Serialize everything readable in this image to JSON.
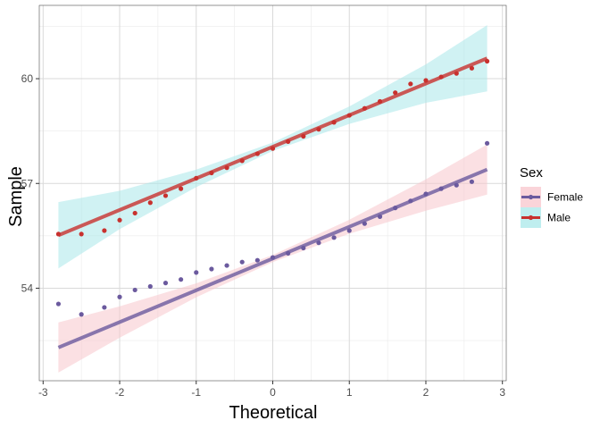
{
  "chart_data": {
    "type": "scatter",
    "subtype": "qq-plot",
    "title": "",
    "xlabel": "Theoretical",
    "ylabel": "Sample",
    "xlim": [
      -3.05,
      3.05
    ],
    "ylim": [
      51.35,
      62.1
    ],
    "x_ticks": [
      -3,
      -2,
      -1,
      0,
      1,
      2,
      3
    ],
    "x_tick_labels": [
      "-3",
      "-2",
      "-1",
      "0",
      "1",
      "2",
      "3"
    ],
    "y_ticks": [
      54,
      57,
      60
    ],
    "y_tick_labels": [
      "54",
      "57",
      "60"
    ],
    "grid": true,
    "legend": {
      "title": "Sex",
      "position": "right"
    },
    "series": [
      {
        "name": "Female",
        "color": "#6b5a9e",
        "band_color": "#f8c6cc",
        "line": {
          "intercept": 54.85,
          "slope": 0.91
        },
        "band_half_width": [
          [
            -2.8,
            0.72
          ],
          [
            -2.0,
            0.45
          ],
          [
            -1.0,
            0.2
          ],
          [
            0.0,
            0.1
          ],
          [
            1.0,
            0.2
          ],
          [
            2.0,
            0.45
          ],
          [
            2.8,
            0.72
          ]
        ],
        "points": [
          [
            -2.8,
            53.55
          ],
          [
            -2.5,
            53.25
          ],
          [
            -2.2,
            53.45
          ],
          [
            -2.0,
            53.75
          ],
          [
            -1.8,
            53.95
          ],
          [
            -1.6,
            54.05
          ],
          [
            -1.4,
            54.15
          ],
          [
            -1.2,
            54.25
          ],
          [
            -1.0,
            54.45
          ],
          [
            -0.8,
            54.55
          ],
          [
            -0.6,
            54.65
          ],
          [
            -0.4,
            54.75
          ],
          [
            -0.2,
            54.8
          ],
          [
            0.0,
            54.88
          ],
          [
            0.2,
            55.0
          ],
          [
            0.4,
            55.15
          ],
          [
            0.6,
            55.3
          ],
          [
            0.8,
            55.45
          ],
          [
            1.0,
            55.65
          ],
          [
            1.2,
            55.85
          ],
          [
            1.4,
            56.05
          ],
          [
            1.6,
            56.3
          ],
          [
            1.8,
            56.5
          ],
          [
            2.0,
            56.7
          ],
          [
            2.2,
            56.85
          ],
          [
            2.4,
            56.95
          ],
          [
            2.6,
            57.05
          ],
          [
            2.8,
            58.15
          ]
        ]
      },
      {
        "name": "Male",
        "color": "#c8312e",
        "band_color": "#aae8ea",
        "line": {
          "intercept": 58.05,
          "slope": 0.905
        },
        "band_half_width": [
          [
            -2.8,
            0.95
          ],
          [
            -2.0,
            0.55
          ],
          [
            -1.0,
            0.25
          ],
          [
            0.0,
            0.12
          ],
          [
            1.0,
            0.25
          ],
          [
            2.0,
            0.55
          ],
          [
            2.8,
            0.95
          ]
        ],
        "points": [
          [
            -2.8,
            55.55
          ],
          [
            -2.5,
            55.55
          ],
          [
            -2.2,
            55.65
          ],
          [
            -2.0,
            55.95
          ],
          [
            -1.8,
            56.15
          ],
          [
            -1.6,
            56.45
          ],
          [
            -1.4,
            56.65
          ],
          [
            -1.2,
            56.85
          ],
          [
            -1.0,
            57.15
          ],
          [
            -0.8,
            57.3
          ],
          [
            -0.6,
            57.45
          ],
          [
            -0.4,
            57.65
          ],
          [
            -0.2,
            57.85
          ],
          [
            0.0,
            58.0
          ],
          [
            0.2,
            58.2
          ],
          [
            0.4,
            58.35
          ],
          [
            0.6,
            58.55
          ],
          [
            0.8,
            58.75
          ],
          [
            1.0,
            58.95
          ],
          [
            1.2,
            59.15
          ],
          [
            1.4,
            59.35
          ],
          [
            1.6,
            59.6
          ],
          [
            1.8,
            59.85
          ],
          [
            2.0,
            59.95
          ],
          [
            2.2,
            60.05
          ],
          [
            2.4,
            60.15
          ],
          [
            2.6,
            60.3
          ],
          [
            2.8,
            60.5
          ]
        ]
      }
    ]
  }
}
